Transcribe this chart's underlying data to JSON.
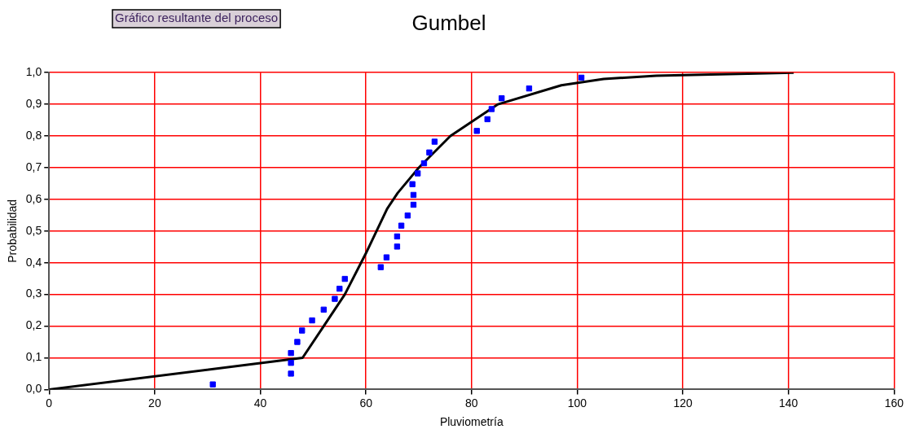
{
  "chart_data": {
    "type": "scatter",
    "title": "Gumbel",
    "xlabel": "Pluviometría",
    "ylabel": "Probabilidad",
    "annotations": [
      "Gráfico resultante del proceso"
    ],
    "series": [
      {
        "color": "#0000ff",
        "marker": "square",
        "x": [
          31,
          45.8,
          45.8,
          45.8,
          47,
          47.9,
          49.8,
          52,
          54.1,
          55,
          56,
          62.8,
          63.9,
          65.9,
          65.9,
          66.7,
          67.9,
          69,
          69,
          68.8,
          69.8,
          71,
          72,
          73,
          81,
          83,
          83.8,
          85.7,
          90.9,
          100.8
        ],
        "values": [
          0.016,
          0.05,
          0.084,
          0.115,
          0.15,
          0.186,
          0.218,
          0.252,
          0.286,
          0.318,
          0.349,
          0.386,
          0.417,
          0.451,
          0.483,
          0.517,
          0.549,
          0.583,
          0.614,
          0.648,
          0.682,
          0.714,
          0.748,
          0.782,
          0.816,
          0.853,
          0.885,
          0.919,
          0.95,
          0.984
        ]
      },
      {
        "type": "line",
        "color": "#000000",
        "marker": "none",
        "line_style": "solid",
        "x": [
          0,
          48,
          52,
          56,
          60,
          64,
          66,
          70,
          76,
          85,
          97,
          105,
          115,
          141
        ],
        "values": [
          0,
          0.1,
          0.2,
          0.3,
          0.43,
          0.57,
          0.62,
          0.7,
          0.8,
          0.9,
          0.96,
          0.98,
          0.99,
          1.0
        ]
      }
    ],
    "xlim": [
      0,
      160
    ],
    "xticks": [
      0,
      20,
      40,
      60,
      80,
      100,
      120,
      140,
      160
    ],
    "ylim": [
      0,
      1
    ],
    "yticks": [
      {
        "value": 0,
        "label": "0,0"
      },
      {
        "value": 0.1,
        "label": "0,1"
      },
      {
        "value": 0.2,
        "label": "0,2"
      },
      {
        "value": 0.3,
        "label": "0,3"
      },
      {
        "value": 0.4,
        "label": "0,4"
      },
      {
        "value": 0.5,
        "label": "0,5"
      },
      {
        "value": 0.6,
        "label": "0,6"
      },
      {
        "value": 0.7,
        "label": "0,7"
      },
      {
        "value": 0.8,
        "label": "0,8"
      },
      {
        "value": 0.9,
        "label": "0,9"
      },
      {
        "value": 1,
        "label": "1,0"
      }
    ],
    "grid": true,
    "legend": false
  }
}
